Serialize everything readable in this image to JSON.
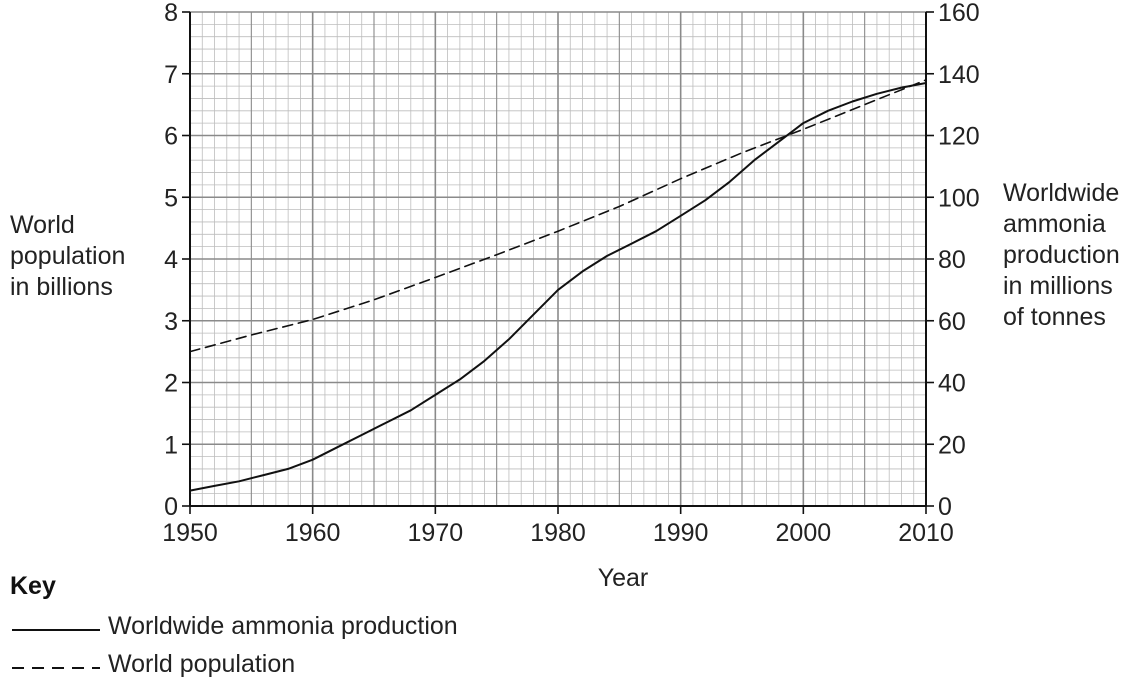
{
  "chart_data": {
    "type": "line",
    "xlabel": "Year",
    "ylabel": [
      "World",
      "population",
      "in billions"
    ],
    "y2label": [
      "Worldwide",
      "ammonia",
      "production",
      "in millions",
      "of tonnes"
    ],
    "xlim": [
      1950,
      2010
    ],
    "ylim": [
      0,
      8
    ],
    "y2lim": [
      0,
      160
    ],
    "x_ticks": [
      1950,
      1960,
      1970,
      1980,
      1990,
      2000,
      2010
    ],
    "y_ticks": [
      0,
      1,
      2,
      3,
      4,
      5,
      6,
      7,
      8
    ],
    "y2_ticks": [
      0,
      20,
      40,
      60,
      80,
      100,
      120,
      140,
      160
    ],
    "grid": true,
    "series": [
      {
        "name": "Worldwide ammonia production",
        "axis": "right",
        "style": "solid",
        "x": [
          1950,
          1952,
          1954,
          1956,
          1958,
          1960,
          1962,
          1964,
          1966,
          1968,
          1970,
          1972,
          1974,
          1976,
          1978,
          1980,
          1982,
          1984,
          1986,
          1988,
          1990,
          1992,
          1994,
          1996,
          1998,
          2000,
          2002,
          2004,
          2006,
          2008,
          2010
        ],
        "values": [
          5,
          6.5,
          8,
          10,
          12,
          15,
          19,
          23,
          27,
          31,
          36,
          41,
          47,
          54,
          62,
          70,
          76,
          81,
          85,
          89,
          94,
          99,
          105,
          112,
          118,
          124,
          128,
          131,
          133.5,
          135.5,
          137
        ]
      },
      {
        "name": "World population",
        "axis": "left",
        "style": "dashed",
        "x": [
          1950,
          1955,
          1960,
          1965,
          1970,
          1975,
          1980,
          1985,
          1990,
          1995,
          2000,
          2005,
          2010
        ],
        "values": [
          2.5,
          2.77,
          3.02,
          3.34,
          3.7,
          4.07,
          4.45,
          4.85,
          5.3,
          5.72,
          6.1,
          6.5,
          6.9
        ]
      }
    ]
  },
  "key": {
    "title": "Key",
    "items": [
      {
        "label": "Worldwide ammonia production",
        "style": "solid"
      },
      {
        "label": "World population",
        "style": "dashed"
      }
    ]
  },
  "colors": {
    "grid_minor": "#bdbdbd",
    "grid_major": "#8a8a8a",
    "line": "#111111"
  }
}
